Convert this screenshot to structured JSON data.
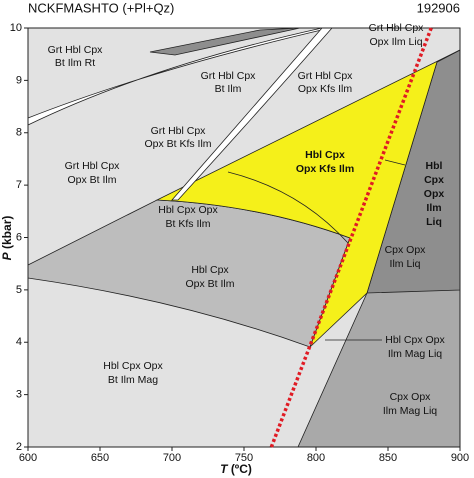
{
  "chart_data": {
    "type": "pseudosection",
    "title": "NCKFMASHTO (+Pl+Qz)",
    "subtitle": "192906",
    "x_label": {
      "var": "T",
      "unit": "(ºC)"
    },
    "y_label": {
      "var": "P",
      "unit": "(kbar)"
    },
    "xlim": [
      600,
      900
    ],
    "xticks": [
      600,
      650,
      700,
      750,
      800,
      850,
      900
    ],
    "ylim": [
      2,
      10
    ],
    "yticks": [
      2,
      3,
      4,
      5,
      6,
      7,
      8,
      9,
      10
    ],
    "series": [
      {
        "color": "#e01b24",
        "x": [
          769,
          880
        ],
        "values": [
          2,
          10
        ]
      }
    ],
    "annotations": [
      {
        "lines": [
          "Grt Hbl Cpx",
          "Bt Ilm Rt"
        ],
        "bold": false
      },
      {
        "lines": [
          "Grt Hbl Cpx",
          "Bt Ilm"
        ],
        "bold": false
      },
      {
        "lines": [
          "Grt Hbl Cpx",
          "Opx Ilm Liq"
        ],
        "bold": false
      },
      {
        "lines": [
          "Grt Hbl Cpx",
          "Opx Kfs Ilm"
        ],
        "bold": false
      },
      {
        "lines": [
          "Grt Hbl Cpx",
          "Opx Bt Kfs Ilm"
        ],
        "bold": false
      },
      {
        "lines": [
          "Grt Hbl Cpx",
          "Opx Bt Ilm"
        ],
        "bold": false
      },
      {
        "lines": [
          "Hbl Cpx",
          "Opx Kfs Ilm"
        ],
        "bold": true
      },
      {
        "lines": [
          "Hbl",
          "Cpx",
          "Opx",
          "Ilm",
          "Liq"
        ],
        "bold": true
      },
      {
        "lines": [
          "Hbl Cpx Opx",
          "Bt Kfs Ilm"
        ],
        "bold": false
      },
      {
        "lines": [
          "Hbl Cpx",
          "Opx Bt Ilm"
        ],
        "bold": false
      },
      {
        "lines": [
          "Cpx Opx",
          "Ilm Liq"
        ],
        "bold": false
      },
      {
        "lines": [
          "Hbl Cpx Opx",
          "Ilm Mag Liq"
        ],
        "bold": false
      },
      {
        "lines": [
          "Hbl Cpx Opx",
          "Bt Ilm Mag"
        ],
        "bold": false
      },
      {
        "lines": [
          "Cpx Opx",
          "Ilm Mag Liq"
        ],
        "bold": false
      }
    ]
  }
}
